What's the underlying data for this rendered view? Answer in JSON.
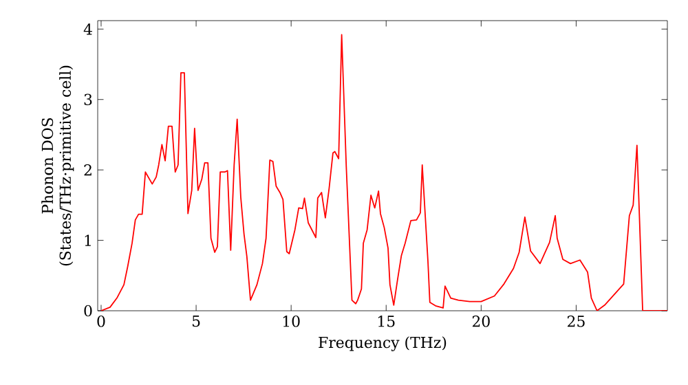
{
  "chart_data": {
    "type": "line",
    "xlabel": "Frequency (THz)",
    "ylabel": "Phonon DOS (States/THz·primitive cell)",
    "xlim": [
      -0.18,
      29.8
    ],
    "ylim": [
      0,
      4.12
    ],
    "xticks": [
      0,
      5,
      10,
      15,
      20,
      25
    ],
    "yticks": [
      0,
      1,
      2,
      3,
      4
    ],
    "grid": false,
    "marker": "none",
    "line_style": "solid",
    "series": [
      {
        "color": "#ff0000",
        "x": [
          0,
          0.47,
          0.83,
          1.2,
          1.4,
          1.63,
          1.8,
          1.97,
          2.16,
          2.33,
          2.69,
          2.9,
          3.03,
          3.2,
          3.37,
          3.54,
          3.73,
          3.9,
          4.05,
          4.2,
          4.38,
          4.57,
          4.77,
          4.92,
          5.1,
          5.3,
          5.45,
          5.62,
          5.78,
          5.98,
          6.12,
          6.27,
          6.51,
          6.65,
          6.82,
          7.0,
          7.16,
          7.35,
          7.52,
          7.67,
          7.86,
          8.2,
          8.49,
          8.68,
          8.88,
          9.04,
          9.21,
          9.41,
          9.57,
          9.77,
          9.9,
          10.2,
          10.4,
          10.6,
          10.7,
          10.9,
          11.3,
          11.4,
          11.6,
          11.8,
          12.0,
          12.2,
          12.3,
          12.5,
          12.66,
          12.9,
          13.2,
          13.4,
          13.5,
          13.7,
          13.8,
          14.0,
          14.2,
          14.4,
          14.6,
          14.7,
          14.9,
          15.1,
          15.2,
          15.4,
          15.6,
          15.8,
          16.0,
          16.3,
          16.6,
          16.8,
          16.9,
          17.2,
          17.3,
          17.6,
          18.0,
          18.1,
          18.4,
          18.8,
          19.4,
          20.0,
          20.7,
          21.2,
          21.7,
          22.0,
          22.3,
          22.6,
          23.1,
          23.6,
          23.9,
          24.0,
          24.3,
          24.7,
          25.2,
          25.6,
          25.8,
          26.1,
          26.5,
          27.5,
          27.8,
          28.0,
          28.2,
          28.5,
          29.8
        ],
        "values": [
          0,
          0.05,
          0.18,
          0.37,
          0.63,
          0.96,
          1.29,
          1.37,
          1.37,
          1.97,
          1.8,
          1.9,
          2.07,
          2.36,
          2.13,
          2.62,
          2.62,
          1.97,
          2.07,
          3.38,
          3.38,
          1.38,
          1.71,
          2.59,
          1.71,
          1.87,
          2.1,
          2.1,
          1.03,
          0.83,
          0.91,
          1.97,
          1.97,
          1.99,
          0.86,
          2.07,
          2.72,
          1.61,
          1.09,
          0.77,
          0.15,
          0.37,
          0.67,
          1.03,
          2.14,
          2.12,
          1.77,
          1.68,
          1.58,
          0.84,
          0.81,
          1.15,
          1.46,
          1.45,
          1.6,
          1.25,
          1.04,
          1.6,
          1.68,
          1.32,
          1.74,
          2.24,
          2.26,
          2.16,
          3.92,
          2.06,
          0.15,
          0.1,
          0.15,
          0.31,
          0.96,
          1.15,
          1.64,
          1.46,
          1.7,
          1.38,
          1.18,
          0.89,
          0.37,
          0.08,
          0.44,
          0.78,
          0.96,
          1.28,
          1.29,
          1.39,
          2.07,
          0.7,
          0.12,
          0.07,
          0.04,
          0.35,
          0.18,
          0.15,
          0.13,
          0.13,
          0.21,
          0.38,
          0.6,
          0.83,
          1.33,
          0.85,
          0.67,
          0.97,
          1.35,
          1.03,
          0.73,
          0.67,
          0.72,
          0.55,
          0.18,
          0,
          0.08,
          0.38,
          1.35,
          1.5,
          2.35,
          0,
          0
        ]
      }
    ]
  }
}
